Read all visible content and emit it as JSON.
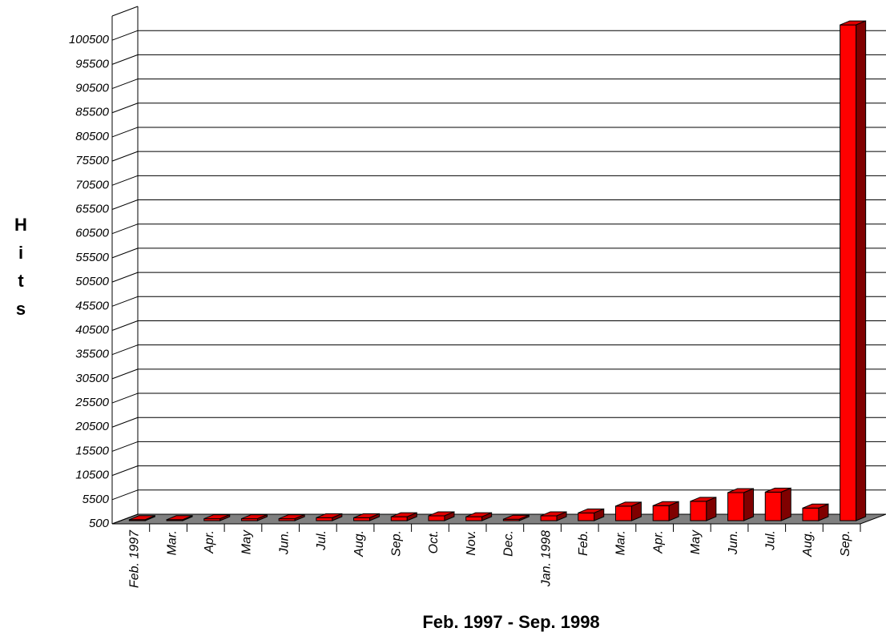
{
  "chart_data": {
    "type": "bar3d",
    "xlabel": "Feb. 1997 - Sep. 1998",
    "ylabel": "Hits",
    "categories": [
      "Feb. 1997",
      "Mar.",
      "Apr.",
      "May",
      "Jun.",
      "Jul.",
      "Aug.",
      "Sep.",
      "Oct.",
      "Nov.",
      "Dec.",
      "Jan. 1998",
      "Feb.",
      "Mar.",
      "Apr.",
      "May",
      "Jun.",
      "Jul.",
      "Aug.",
      "Sep."
    ],
    "values": [
      700,
      700,
      900,
      900,
      900,
      1100,
      1100,
      1300,
      1500,
      1300,
      800,
      1500,
      2100,
      3500,
      3600,
      4500,
      6300,
      6400,
      3100,
      103000
    ],
    "color": "#ff0000",
    "ylim": [
      500,
      105500
    ],
    "yticks": [
      500,
      5500,
      10500,
      15500,
      20500,
      25500,
      30500,
      35500,
      40500,
      45500,
      50500,
      55500,
      60500,
      65500,
      70500,
      75500,
      80500,
      85500,
      90500,
      95500,
      100500
    ],
    "grid": true
  }
}
